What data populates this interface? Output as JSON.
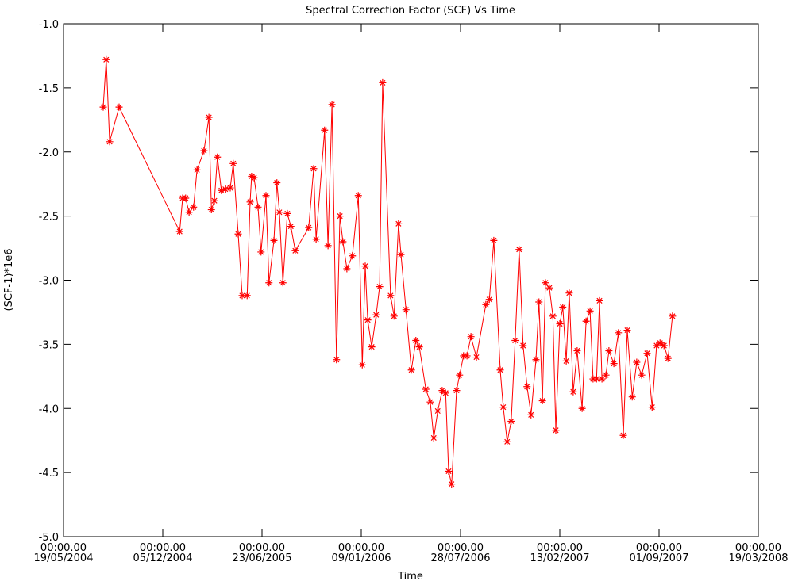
{
  "chart_data": {
    "type": "line",
    "title": "Spectral Correction Factor (SCF) Vs Time",
    "x_label": "Time",
    "y_label": "(SCF-1)*1e6",
    "xlim": [
      "2004-05-19",
      "2008-03-19"
    ],
    "xticks": [
      {
        "value": "2004-05-19",
        "label": "00:00.00\n19/05/2004"
      },
      {
        "value": "2004-12-05",
        "label": "00:00.00\n05/12/2004"
      },
      {
        "value": "2005-06-23",
        "label": "00:00.00\n23/06/2005"
      },
      {
        "value": "2006-01-09",
        "label": "00:00.00\n09/01/2006"
      },
      {
        "value": "2006-07-28",
        "label": "00:00.00\n28/07/2006"
      },
      {
        "value": "2007-02-13",
        "label": "00:00.00\n13/02/2007"
      },
      {
        "value": "2007-09-01",
        "label": "00:00.00\n01/09/2007"
      },
      {
        "value": "2008-03-19",
        "label": "00:00.00\n19/03/2008"
      }
    ],
    "ylim": [
      -5.0,
      -1.0
    ],
    "yticks": [
      {
        "value": -1.0,
        "label": "-1.0"
      },
      {
        "value": -1.5,
        "label": "-1.5"
      },
      {
        "value": -2.0,
        "label": "-2.0"
      },
      {
        "value": -2.5,
        "label": "-2.5"
      },
      {
        "value": -3.0,
        "label": "-3.0"
      },
      {
        "value": -3.5,
        "label": "-3.5"
      },
      {
        "value": -4.0,
        "label": "-4.0"
      },
      {
        "value": -4.5,
        "label": "-4.5"
      },
      {
        "value": -5.0,
        "label": "-5.0"
      }
    ],
    "grid": false,
    "x": [
      "2004-08-07",
      "2004-08-13",
      "2004-08-20",
      "2004-09-08",
      "2005-01-08",
      "2005-01-14",
      "2005-01-20",
      "2005-01-27",
      "2005-02-05",
      "2005-02-12",
      "2005-02-26",
      "2005-03-08",
      "2005-03-13",
      "2005-03-19",
      "2005-03-25",
      "2005-04-02",
      "2005-04-10",
      "2005-04-20",
      "2005-04-26",
      "2005-05-06",
      "2005-05-14",
      "2005-05-24",
      "2005-05-30",
      "2005-06-02",
      "2005-06-07",
      "2005-06-15",
      "2005-06-21",
      "2005-07-01",
      "2005-07-07",
      "2005-07-17",
      "2005-07-23",
      "2005-07-28",
      "2005-08-04",
      "2005-08-13",
      "2005-08-20",
      "2005-08-29",
      "2005-09-25",
      "2005-10-05",
      "2005-10-10",
      "2005-10-27",
      "2005-11-03",
      "2005-11-11",
      "2005-11-20",
      "2005-11-27",
      "2005-12-03",
      "2005-12-11",
      "2005-12-22",
      "2006-01-03",
      "2006-01-11",
      "2006-01-17",
      "2006-01-22",
      "2006-01-30",
      "2006-02-08",
      "2006-02-15",
      "2006-02-21",
      "2006-03-09",
      "2006-03-16",
      "2006-03-25",
      "2006-03-30",
      "2006-04-09",
      "2006-04-20",
      "2006-04-29",
      "2006-05-06",
      "2006-05-19",
      "2006-05-28",
      "2006-06-04",
      "2006-06-12",
      "2006-06-21",
      "2006-06-28",
      "2006-07-04",
      "2006-07-10",
      "2006-07-20",
      "2006-07-26",
      "2006-08-03",
      "2006-08-10",
      "2006-08-18",
      "2006-08-29",
      "2006-09-17",
      "2006-09-24",
      "2006-10-03",
      "2006-10-16",
      "2006-10-22",
      "2006-10-30",
      "2006-11-07",
      "2006-11-15",
      "2006-11-23",
      "2006-12-01",
      "2006-12-09",
      "2006-12-17",
      "2006-12-27",
      "2007-01-02",
      "2007-01-09",
      "2007-01-15",
      "2007-01-23",
      "2007-01-30",
      "2007-02-05",
      "2007-02-13",
      "2007-02-19",
      "2007-02-26",
      "2007-03-04",
      "2007-03-12",
      "2007-03-20",
      "2007-03-30",
      "2007-04-07",
      "2007-04-15",
      "2007-04-21",
      "2007-04-28",
      "2007-05-04",
      "2007-05-09",
      "2007-05-17",
      "2007-05-23",
      "2007-06-02",
      "2007-06-11",
      "2007-06-21",
      "2007-06-29",
      "2007-07-09",
      "2007-07-18",
      "2007-07-28",
      "2007-08-08",
      "2007-08-18",
      "2007-08-27",
      "2007-09-03",
      "2007-09-11",
      "2007-09-19",
      "2007-09-28"
    ],
    "series": [
      {
        "color": "#ff0000",
        "values": [
          -1.65,
          -1.28,
          -1.92,
          -1.65,
          -2.62,
          -2.36,
          -2.36,
          -2.47,
          -2.43,
          -2.14,
          -1.99,
          -1.73,
          -2.45,
          -2.38,
          -2.04,
          -2.3,
          -2.29,
          -2.28,
          -2.09,
          -2.64,
          -3.12,
          -3.12,
          -2.39,
          -2.19,
          -2.2,
          -2.43,
          -2.78,
          -2.34,
          -3.02,
          -2.69,
          -2.24,
          -2.47,
          -3.02,
          -2.48,
          -2.58,
          -2.77,
          -2.59,
          -2.13,
          -2.68,
          -1.83,
          -2.73,
          -1.63,
          -3.62,
          -2.5,
          -2.7,
          -2.91,
          -2.81,
          -2.34,
          -3.66,
          -2.89,
          -3.31,
          -3.52,
          -3.27,
          -3.05,
          -1.46,
          -3.12,
          -3.28,
          -2.56,
          -2.8,
          -3.23,
          -3.7,
          -3.47,
          -3.52,
          -3.85,
          -3.95,
          -4.23,
          -4.02,
          -3.86,
          -3.88,
          -4.49,
          -4.59,
          -3.86,
          -3.74,
          -3.59,
          -3.59,
          -3.44,
          -3.6,
          -3.19,
          -3.15,
          -2.69,
          -3.7,
          -3.99,
          -4.26,
          -4.1,
          -3.47,
          -2.76,
          -3.51,
          -3.83,
          -4.05,
          -3.62,
          -3.17,
          -3.94,
          -3.02,
          -3.06,
          -3.28,
          -4.17,
          -3.34,
          -3.21,
          -3.63,
          -3.1,
          -3.87,
          -3.55,
          -4.0,
          -3.32,
          -3.24,
          -3.77,
          -3.77,
          -3.16,
          -3.77,
          -3.74,
          -3.55,
          -3.65,
          -3.41,
          -4.21,
          -3.39,
          -3.91,
          -3.64,
          -3.74,
          -3.57,
          -3.99,
          -3.51,
          -3.49,
          -3.51,
          -3.61,
          -3.28
        ]
      }
    ]
  }
}
